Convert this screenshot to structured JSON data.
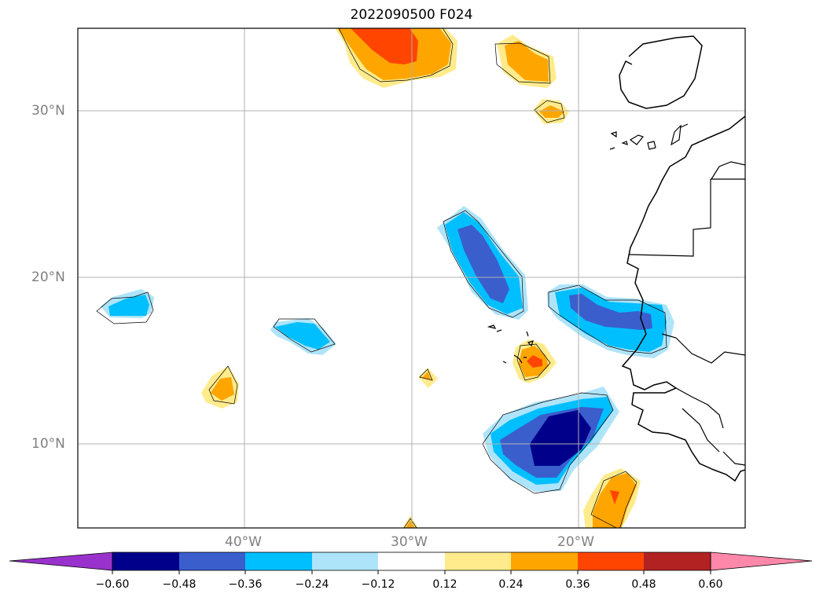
{
  "title": "2022090500 F024",
  "map": {
    "lon_range": [
      -50,
      -10
    ],
    "lat_range": [
      5,
      35
    ],
    "grid": true,
    "lat_ticks": [
      {
        "value": 30,
        "label": "30°N"
      },
      {
        "value": 20,
        "label": "20°N"
      },
      {
        "value": 10,
        "label": "10°N"
      }
    ],
    "lon_ticks": [
      {
        "value": -40,
        "label": "40°W"
      },
      {
        "value": -30,
        "label": "30°W"
      },
      {
        "value": -20,
        "label": "20°W"
      }
    ]
  },
  "colorbar": {
    "levels": [
      "−0.60",
      "−0.48",
      "−0.36",
      "−0.24",
      "−0.12",
      "0.12",
      "0.24",
      "0.36",
      "0.48",
      "0.60"
    ],
    "colors": [
      "#9932cc",
      "#00008b",
      "#3a5fcd",
      "#00bfff",
      "#aee4fa",
      "#ffffff",
      "#ffeb8c",
      "#ffa500",
      "#ff4500",
      "#b22222",
      "#ff88aa"
    ],
    "extend": "both"
  },
  "colors": {
    "neg1": "#aee4fa",
    "neg2": "#00bfff",
    "neg3": "#3a5fcd",
    "neg4": "#00008b",
    "pos1": "#ffeb8c",
    "pos2": "#ffa500",
    "pos3": "#ff4500"
  }
}
